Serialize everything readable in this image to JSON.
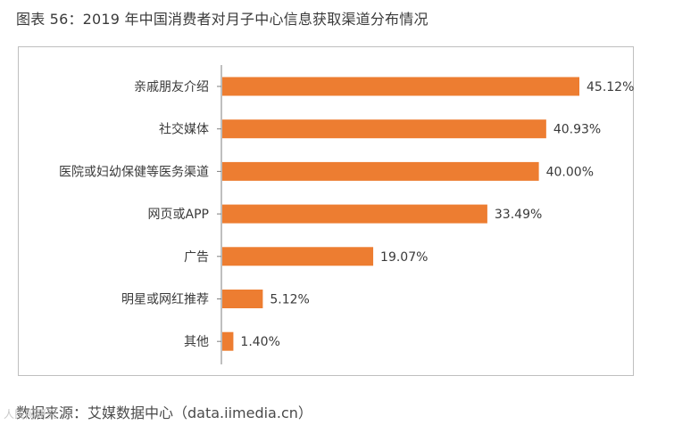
{
  "title": "图表 56：2019 年中国消费者对月子中心信息获取渠道分布情况",
  "source": "数据来源：艾媒数据中心（data.iimedia.cn）",
  "watermark": "人民网研究",
  "colors": {
    "bar": "#ED7D31",
    "axis": "#7f7f7f"
  },
  "chart_data": {
    "type": "bar",
    "orientation": "horizontal",
    "categories": [
      "亲戚朋友介绍",
      "社交媒体",
      "医院或妇幼保健等医务渠道",
      "网页或APP",
      "广告",
      "明星或网红推荐",
      "其他"
    ],
    "values": [
      45.12,
      40.93,
      40.0,
      33.49,
      19.07,
      5.12,
      1.4
    ],
    "value_labels": [
      "45.12%",
      "40.93%",
      "40.00%",
      "33.49%",
      "19.07%",
      "5.12%",
      "1.40%"
    ],
    "unit": "%",
    "grid": false,
    "legend": "none"
  }
}
